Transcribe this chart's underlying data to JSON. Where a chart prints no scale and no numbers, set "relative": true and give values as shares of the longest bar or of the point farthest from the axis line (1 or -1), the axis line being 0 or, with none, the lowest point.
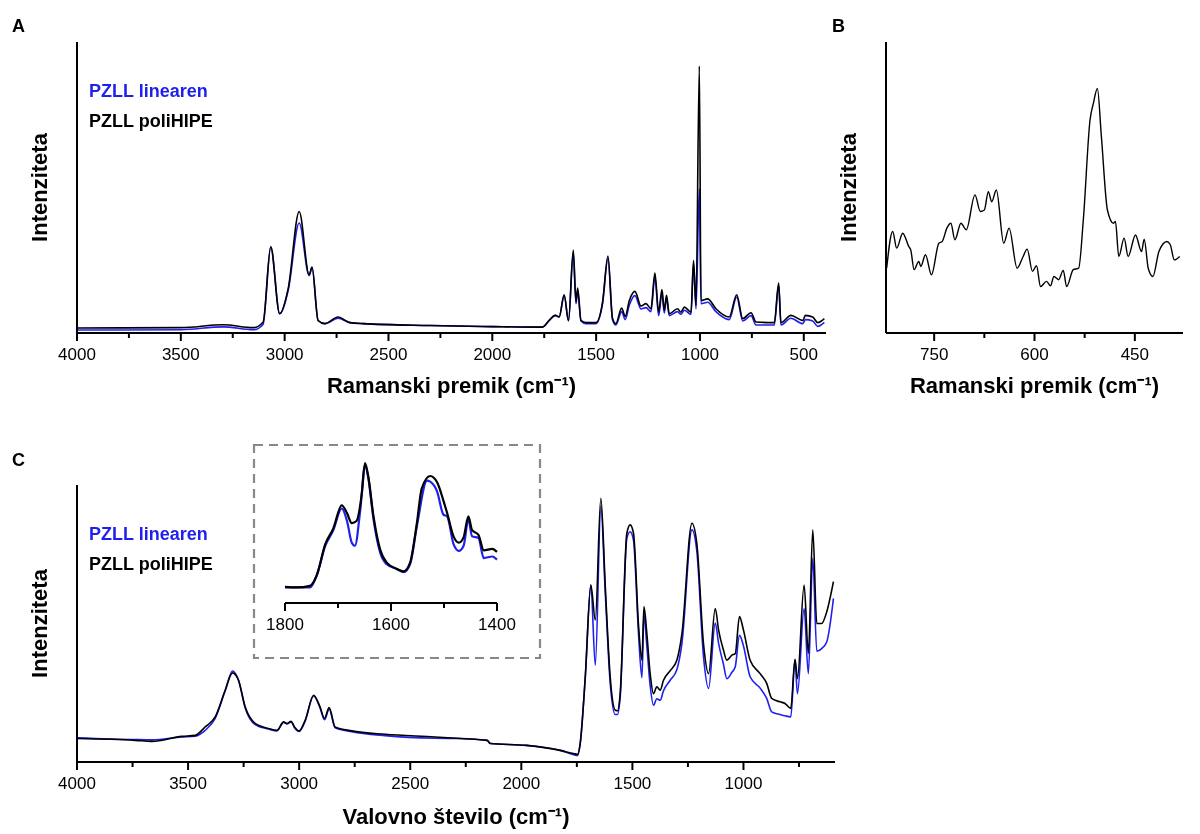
{
  "chart_data": [
    {
      "type": "line",
      "title": "A",
      "xlabel": "Ramanski premik (cm⁻¹)",
      "ylabel": "Intenziteta",
      "relative": true,
      "legend": "top left",
      "xlim": [
        4000,
        393
      ],
      "xticks": [
        4000,
        {
          "value": 3750,
          "label": null
        },
        3500,
        {
          "value": 3250,
          "label": null
        },
        3000,
        {
          "value": 2750,
          "label": null
        },
        2500,
        {
          "value": 2250,
          "label": null
        },
        2000,
        {
          "value": 1750,
          "label": null
        },
        1500,
        {
          "value": 1250,
          "label": null
        },
        1000,
        {
          "value": 750,
          "label": null
        },
        500
      ],
      "x": [
        4000,
        3500,
        3297,
        3150,
        3104,
        3067,
        3024,
        2983,
        2930,
        2882,
        2868,
        2839,
        2807,
        2743,
        2686,
        2622,
        2300,
        2000,
        1758,
        1726,
        1697,
        1678,
        1654,
        1633,
        1610,
        1597,
        1589,
        1573,
        1549,
        1501,
        1469,
        1443,
        1421,
        1405,
        1377,
        1360,
        1340,
        1313,
        1284,
        1260,
        1236,
        1217,
        1199,
        1183,
        1172,
        1161,
        1148,
        1108,
        1092,
        1075,
        1043,
        1031,
        1019,
        1003,
        995,
        963,
        923,
        859,
        823,
        794,
        754,
        730,
        642,
        621,
        610,
        562,
        505,
        492,
        457,
        433,
        401
      ],
      "series": [
        {
          "name": "PZLL linearen",
          "color": "#1f1fee",
          "values": [
            0.011,
            0.012,
            0.023,
            0.012,
            0.032,
            0.32,
            0.072,
            0.16,
            0.412,
            0.215,
            0.245,
            0.047,
            0.035,
            0.055,
            0.039,
            0.035,
            0.028,
            0.024,
            0.022,
            0.047,
            0.066,
            0.06,
            0.14,
            0.045,
            0.3,
            0.11,
            0.16,
            0.045,
            0.035,
            0.035,
            0.11,
            0.28,
            0.05,
            0.03,
            0.08,
            0.05,
            0.105,
            0.14,
            0.09,
            0.095,
            0.08,
            0.21,
            0.065,
            0.15,
            0.075,
            0.13,
            0.065,
            0.08,
            0.07,
            0.085,
            0.07,
            0.26,
            0.09,
            0.54,
            0.11,
            0.115,
            0.08,
            0.05,
            0.135,
            0.045,
            0.065,
            0.03,
            0.03,
            0.18,
            0.03,
            0.055,
            0.035,
            0.05,
            0.045,
            0.025,
            0.04
          ]
        },
        {
          "name": "PZLL poliHIPE",
          "color": "#000000",
          "values": [
            0.019,
            0.02,
            0.031,
            0.02,
            0.04,
            0.324,
            0.072,
            0.166,
            0.455,
            0.218,
            0.247,
            0.047,
            0.035,
            0.06,
            0.039,
            0.035,
            0.028,
            0.024,
            0.022,
            0.047,
            0.066,
            0.06,
            0.143,
            0.047,
            0.311,
            0.116,
            0.168,
            0.047,
            0.039,
            0.039,
            0.116,
            0.288,
            0.054,
            0.035,
            0.093,
            0.062,
            0.122,
            0.156,
            0.101,
            0.11,
            0.091,
            0.225,
            0.078,
            0.163,
            0.085,
            0.141,
            0.072,
            0.091,
            0.078,
            0.097,
            0.078,
            0.271,
            0.103,
            1,
            0.122,
            0.128,
            0.091,
            0.06,
            0.143,
            0.054,
            0.076,
            0.041,
            0.039,
            0.187,
            0.039,
            0.066,
            0.047,
            0.066,
            0.06,
            0.039,
            0.054
          ]
        }
      ]
    },
    {
      "type": "line",
      "title": "B",
      "xlabel": "Ramanski premik (cm⁻¹)",
      "ylabel": "Intenziteta",
      "relative": true,
      "xlim": [
        822,
        378
      ],
      "xticks": [
        750,
        {
          "value": 675,
          "label": null
        },
        600,
        {
          "value": 525,
          "label": null
        },
        450
      ],
      "x": [
        821,
        812,
        806,
        797,
        788,
        785,
        780,
        773,
        770,
        763,
        754,
        743,
        738,
        731,
        725,
        719,
        710,
        702,
        689,
        681,
        675,
        669,
        664,
        657,
        646,
        638,
        626,
        617,
        611,
        603,
        597,
        591,
        582,
        576,
        571,
        564,
        557,
        552,
        542,
        534,
        527,
        517,
        512,
        506,
        500,
        491,
        482,
        479,
        474,
        466,
        460,
        449,
        440,
        436,
        430,
        423,
        414,
        402,
        397,
        391,
        383
      ],
      "series": [
        {
          "color": "#000000",
          "values": [
            0.265,
            0.415,
            0.347,
            0.408,
            0.354,
            0.34,
            0.259,
            0.293,
            0.272,
            0.32,
            0.238,
            0.367,
            0.374,
            0.429,
            0.449,
            0.381,
            0.449,
            0.422,
            0.565,
            0.497,
            0.503,
            0.578,
            0.537,
            0.585,
            0.367,
            0.429,
            0.265,
            0.313,
            0.343,
            0.252,
            0.275,
            0.19,
            0.211,
            0.193,
            0.231,
            0.218,
            0.256,
            0.19,
            0.259,
            0.265,
            0.463,
            0.871,
            0.939,
            1,
            0.803,
            0.503,
            0.449,
            0.456,
            0.313,
            0.388,
            0.313,
            0.401,
            0.333,
            0.384,
            0.265,
            0.231,
            0.333,
            0.374,
            0.361,
            0.299,
            0.313
          ]
        }
      ]
    },
    {
      "type": "line",
      "title": "C",
      "xlabel": "Valovno število (cm⁻¹)",
      "ylabel": "Intenziteta",
      "relative": true,
      "legend": "top left",
      "xlim": [
        4000,
        588
      ],
      "xticks": [
        4000,
        {
          "value": 3750,
          "label": null
        },
        3500,
        {
          "value": 3250,
          "label": null
        },
        3000,
        {
          "value": 2750,
          "label": null
        },
        2500,
        {
          "value": 2250,
          "label": null
        },
        2000,
        {
          "value": 1750,
          "label": null
        },
        1500,
        {
          "value": 1250,
          "label": null
        },
        1000,
        {
          "value": 750,
          "label": null
        }
      ],
      "x": [
        4000,
        3738,
        3663,
        3528,
        3468,
        3423,
        3378,
        3333,
        3300,
        3273,
        3243,
        3198,
        3138,
        3100,
        3070,
        3055,
        3036,
        3021,
        3000,
        2973,
        2935,
        2906,
        2886,
        2865,
        2838,
        2763,
        2613,
        2388,
        2274,
        2154,
        2139,
        1975,
        1825,
        1765,
        1747,
        1735,
        1712,
        1687,
        1667,
        1642,
        1622,
        1600,
        1577,
        1567,
        1555,
        1525,
        1510,
        1495,
        1472,
        1457,
        1448,
        1435,
        1420,
        1405,
        1390,
        1375,
        1360,
        1330,
        1300,
        1277,
        1232,
        1210,
        1180,
        1157,
        1127,
        1112,
        1090,
        1075,
        1052,
        1037,
        1018,
        1000,
        970,
        925,
        895,
        873,
        835,
        813,
        787,
        768,
        757,
        727,
        708,
        688,
        670,
        648,
        625,
        595
      ],
      "series": [
        {
          "name": "PZLL linearen",
          "color": "#1f1fee",
          "values": [
            0.092,
            0.085,
            0.084,
            0.095,
            0.098,
            0.12,
            0.165,
            0.27,
            0.345,
            0.31,
            0.205,
            0.142,
            0.125,
            0.118,
            0.15,
            0.144,
            0.152,
            0.13,
            0.116,
            0.155,
            0.25,
            0.205,
            0.16,
            0.2,
            0.13,
            0.115,
            0.1,
            0.09,
            0.089,
            0.082,
            0.07,
            0.063,
            0.044,
            0.028,
            0.025,
            0.07,
            0.323,
            0.671,
            0.367,
            0.968,
            0.64,
            0.3,
            0.18,
            0.18,
            0.245,
            0.848,
            0.873,
            0.84,
            0.48,
            0.32,
            0.56,
            0.44,
            0.29,
            0.215,
            0.24,
            0.234,
            0.27,
            0.31,
            0.35,
            0.45,
            0.88,
            0.8,
            0.4,
            0.279,
            0.527,
            0.45,
            0.37,
            0.316,
            0.34,
            0.361,
            0.48,
            0.44,
            0.323,
            0.28,
            0.24,
            0.19,
            0.18,
            0.175,
            0.171,
            0.386,
            0.259,
            0.582,
            0.335,
            0.772,
            0.42,
            0.43,
            0.456,
            0.62
          ]
        },
        {
          "name": "PZLL poliHIPE",
          "color": "#000000",
          "values": [
            0.089,
            0.082,
            0.078,
            0.097,
            0.101,
            0.133,
            0.171,
            0.272,
            0.338,
            0.31,
            0.209,
            0.146,
            0.127,
            0.12,
            0.152,
            0.146,
            0.154,
            0.133,
            0.118,
            0.158,
            0.253,
            0.209,
            0.165,
            0.206,
            0.133,
            0.118,
            0.105,
            0.095,
            0.089,
            0.082,
            0.07,
            0.063,
            0.044,
            0.032,
            0.029,
            0.07,
            0.323,
            0.671,
            0.538,
            1,
            0.665,
            0.323,
            0.196,
            0.194,
            0.259,
            0.867,
            0.899,
            0.867,
            0.513,
            0.386,
            0.589,
            0.487,
            0.335,
            0.259,
            0.285,
            0.272,
            0.31,
            0.346,
            0.386,
            0.487,
            0.905,
            0.829,
            0.449,
            0.335,
            0.582,
            0.5,
            0.424,
            0.386,
            0.405,
            0.411,
            0.551,
            0.5,
            0.386,
            0.335,
            0.297,
            0.241,
            0.228,
            0.222,
            0.203,
            0.389,
            0.316,
            0.671,
            0.411,
            0.88,
            0.525,
            0.525,
            0.57,
            0.684
          ]
        }
      ]
    },
    {
      "type": "line",
      "relative": true,
      "tick_labels": "x",
      "xlim": [
        1800,
        1400
      ],
      "xticks": [
        1800,
        {
          "value": 1700,
          "label": null
        },
        1600,
        {
          "value": 1500,
          "label": null
        },
        1400
      ],
      "series": [
        {
          "color": "#1f1fee",
          "x": [
            1800,
            1753,
            1740,
            1724,
            1709,
            1693,
            1683,
            1674,
            1668,
            1658,
            1649,
            1643,
            1633,
            1620,
            1608,
            1589,
            1576,
            1564,
            1551,
            1532,
            1526,
            1513,
            1501,
            1494,
            1482,
            1472,
            1463,
            1454,
            1447,
            1435,
            1425,
            1409,
            1400
          ],
          "values": [
            0.111,
            0.111,
            0.199,
            0.409,
            0.52,
            0.675,
            0.586,
            0.431,
            0.409,
            0.664,
            0.985,
            0.896,
            0.597,
            0.354,
            0.277,
            0.243,
            0.221,
            0.277,
            0.553,
            0.874,
            0.867,
            0.796,
            0.631,
            0.619,
            0.42,
            0.372,
            0.409,
            0.597,
            0.476,
            0.465,
            0.321,
            0.332,
            0.31
          ]
        },
        {
          "color": "#000000",
          "x": [
            1800,
            1778,
            1753,
            1740,
            1724,
            1709,
            1693,
            1683,
            1674,
            1665,
            1655,
            1649,
            1643,
            1633,
            1620,
            1608,
            1589,
            1576,
            1564,
            1551,
            1542,
            1526,
            1513,
            1501,
            1494,
            1482,
            1472,
            1463,
            1454,
            1447,
            1435,
            1425,
            1409,
            1400
          ],
          "values": [
            0.115,
            0.111,
            0.122,
            0.199,
            0.42,
            0.531,
            0.697,
            0.642,
            0.571,
            0.586,
            0.785,
            1,
            0.907,
            0.619,
            0.376,
            0.288,
            0.243,
            0.226,
            0.288,
            0.575,
            0.819,
            0.907,
            0.863,
            0.73,
            0.642,
            0.476,
            0.431,
            0.469,
            0.619,
            0.52,
            0.487,
            0.376,
            0.387,
            0.365
          ]
        }
      ]
    }
  ]
}
